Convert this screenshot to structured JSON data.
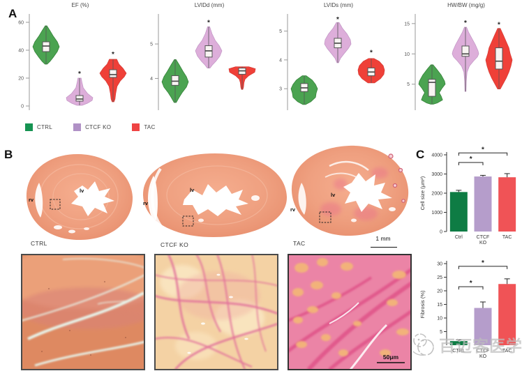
{
  "figure": {
    "panelA_label": "A",
    "panelB_label": "B",
    "panelC_label": "C"
  },
  "panelA": {
    "legend": [
      {
        "label": "CTRL",
        "color": "#169352"
      },
      {
        "label": "CTCF KO",
        "color": "#b091c6"
      },
      {
        "label": "TAC",
        "color": "#ef4444"
      }
    ]
  },
  "panelB": {
    "heart_labels": [
      "CTRL",
      "CTCF KO",
      "TAC"
    ],
    "region_labels": {
      "rv": "rv",
      "lv": "lv"
    },
    "scale_bar": "1 mm",
    "crop_scale_bar": "50μm"
  },
  "watermark": {
    "text": "百迈客医学"
  },
  "chart_data": [
    {
      "type": "violin",
      "title": "EF (%)",
      "ylim": [
        0,
        63
      ],
      "yticks": [
        0,
        20,
        40,
        60
      ],
      "groups": [
        {
          "name": "CTRL",
          "color": "#4ba351",
          "edge": "#2e7d32",
          "median": 43,
          "q1": 39,
          "q3": 46,
          "star": null,
          "profile": [
            [
              57.5,
              0.06
            ],
            [
              54,
              0.3
            ],
            [
              50,
              0.55
            ],
            [
              46,
              0.85
            ],
            [
              42.5,
              1.0
            ],
            [
              39,
              0.85
            ],
            [
              35,
              0.55
            ],
            [
              32,
              0.3
            ],
            [
              30,
              0.08
            ]
          ]
        },
        {
          "name": "CTCF KO",
          "color": "#ddaeda",
          "edge": "#c094c4",
          "median": 5,
          "q1": 3.5,
          "q3": 7.5,
          "star": 23,
          "profile": [
            [
              20,
              0.12
            ],
            [
              17,
              0.18
            ],
            [
              13,
              0.28
            ],
            [
              9,
              0.6
            ],
            [
              6,
              1.0
            ],
            [
              4,
              0.95
            ],
            [
              2,
              0.6
            ],
            [
              0.5,
              0.2
            ]
          ]
        },
        {
          "name": "TAC",
          "color": "#ef4038",
          "edge": "#d43a35",
          "median": 22.5,
          "q1": 20.5,
          "q3": 26,
          "star": 37,
          "profile": [
            [
              33.5,
              0.28
            ],
            [
              30,
              0.45
            ],
            [
              27,
              0.75
            ],
            [
              23.5,
              1.0
            ],
            [
              21,
              0.85
            ],
            [
              18,
              0.55
            ],
            [
              14,
              0.3
            ],
            [
              9,
              0.2
            ],
            [
              5,
              0.15
            ],
            [
              3,
              0.07
            ]
          ]
        }
      ]
    },
    {
      "type": "violin",
      "title": "LVIDd (mm)",
      "ylim": [
        3.2,
        5.75
      ],
      "yticks": [
        4,
        5
      ],
      "groups": [
        {
          "name": "CTRL",
          "color": "#4ba351",
          "edge": "#2e7d32",
          "median": 3.92,
          "q1": 3.8,
          "q3": 4.08,
          "star": null,
          "profile": [
            [
              4.55,
              0.06
            ],
            [
              4.4,
              0.3
            ],
            [
              4.2,
              0.6
            ],
            [
              4.05,
              0.85
            ],
            [
              3.9,
              1.0
            ],
            [
              3.75,
              0.85
            ],
            [
              3.6,
              0.55
            ],
            [
              3.45,
              0.3
            ],
            [
              3.3,
              0.08
            ]
          ]
        },
        {
          "name": "CTCF KO",
          "color": "#ddaeda",
          "edge": "#c094c4",
          "median": 4.8,
          "q1": 4.62,
          "q3": 4.95,
          "star": 5.62,
          "profile": [
            [
              5.5,
              0.08
            ],
            [
              5.3,
              0.25
            ],
            [
              5.1,
              0.5
            ],
            [
              4.95,
              0.8
            ],
            [
              4.8,
              1.0
            ],
            [
              4.65,
              0.85
            ],
            [
              4.5,
              0.55
            ],
            [
              4.4,
              0.3
            ],
            [
              4.3,
              0.1
            ]
          ]
        },
        {
          "name": "TAC",
          "color": "#ef4038",
          "edge": "#d43a35",
          "median": 4.22,
          "q1": 4.12,
          "q3": 4.3,
          "star": null,
          "profile": [
            [
              4.34,
              0.5
            ],
            [
              4.28,
              1.0
            ],
            [
              4.18,
              0.95
            ],
            [
              4.08,
              0.5
            ],
            [
              3.98,
              0.22
            ],
            [
              3.88,
              0.14
            ],
            [
              3.74,
              0.1
            ],
            [
              3.68,
              0.05
            ]
          ]
        }
      ]
    },
    {
      "type": "violin",
      "title": "LVIDs (mm)",
      "ylim": [
        2.4,
        5.45
      ],
      "yticks": [
        3,
        4,
        5
      ],
      "groups": [
        {
          "name": "CTRL",
          "color": "#4ba351",
          "edge": "#2e7d32",
          "median": 3.03,
          "q1": 2.9,
          "q3": 3.18,
          "star": null,
          "profile": [
            [
              3.45,
              0.15
            ],
            [
              3.3,
              0.6
            ],
            [
              3.15,
              0.85
            ],
            [
              3.0,
              1.0
            ],
            [
              2.85,
              0.9
            ],
            [
              2.7,
              0.85
            ],
            [
              2.55,
              0.5
            ],
            [
              2.45,
              0.1
            ]
          ]
        },
        {
          "name": "CTCF KO",
          "color": "#ddaeda",
          "edge": "#c094c4",
          "median": 4.58,
          "q1": 4.42,
          "q3": 4.75,
          "star": 5.4,
          "profile": [
            [
              5.3,
              0.1
            ],
            [
              5.1,
              0.35
            ],
            [
              4.9,
              0.7
            ],
            [
              4.7,
              0.95
            ],
            [
              4.55,
              1.0
            ],
            [
              4.4,
              0.8
            ],
            [
              4.2,
              0.45
            ],
            [
              4.05,
              0.2
            ],
            [
              3.9,
              0.06
            ]
          ]
        },
        {
          "name": "TAC",
          "color": "#ef4038",
          "edge": "#d43a35",
          "median": 3.58,
          "q1": 3.45,
          "q3": 3.72,
          "star": 4.25,
          "profile": [
            [
              4.05,
              0.2
            ],
            [
              3.95,
              0.6
            ],
            [
              3.8,
              0.9
            ],
            [
              3.65,
              1.0
            ],
            [
              3.5,
              0.95
            ],
            [
              3.35,
              0.7
            ],
            [
              3.2,
              0.25
            ]
          ]
        }
      ]
    },
    {
      "type": "violin",
      "title": "HW/BW (mg/g)",
      "ylim": [
        1.4,
        15.9
      ],
      "yticks": [
        5,
        10,
        15
      ],
      "groups": [
        {
          "name": "CTRL",
          "color": "#4ba351",
          "edge": "#2e7d32",
          "median": 5.3,
          "q1": 3.0,
          "q3": 5.8,
          "star": null,
          "profile": [
            [
              8.2,
              0.08
            ],
            [
              7.5,
              0.35
            ],
            [
              6.5,
              0.7
            ],
            [
              5.5,
              0.95
            ],
            [
              5.0,
              1.0
            ],
            [
              4.3,
              0.75
            ],
            [
              3.6,
              0.55
            ],
            [
              3.0,
              0.7
            ],
            [
              2.4,
              0.8
            ],
            [
              1.9,
              0.4
            ],
            [
              1.7,
              0.1
            ]
          ]
        },
        {
          "name": "CTCF KO",
          "color": "#ddaeda",
          "edge": "#c094c4",
          "median": 10.0,
          "q1": 9.6,
          "q3": 11.3,
          "star": 15.1,
          "profile": [
            [
              14.4,
              0.08
            ],
            [
              13.5,
              0.25
            ],
            [
              12.5,
              0.5
            ],
            [
              11.5,
              0.75
            ],
            [
              10.5,
              0.95
            ],
            [
              10.0,
              1.0
            ],
            [
              9.5,
              0.9
            ],
            [
              8.8,
              0.6
            ],
            [
              8.0,
              0.3
            ],
            [
              7.0,
              0.12
            ],
            [
              5.5,
              0.06
            ],
            [
              3.8,
              0.04
            ]
          ]
        },
        {
          "name": "TAC",
          "color": "#ef4038",
          "edge": "#d43a35",
          "median": 8.8,
          "q1": 7.5,
          "q3": 11.0,
          "star": 14.8,
          "profile": [
            [
              14.2,
              0.1
            ],
            [
              13.0,
              0.35
            ],
            [
              12.0,
              0.55
            ],
            [
              11.0,
              0.75
            ],
            [
              10.0,
              0.85
            ],
            [
              9.0,
              1.0
            ],
            [
              8.0,
              0.9
            ],
            [
              7.0,
              0.75
            ],
            [
              6.0,
              0.55
            ],
            [
              5.0,
              0.3
            ],
            [
              4.2,
              0.1
            ]
          ]
        }
      ]
    },
    {
      "type": "bar",
      "ylabel": "Cell size (μm²)",
      "ylim": [
        0,
        4000
      ],
      "yticks": [
        0,
        1000,
        2000,
        3000,
        4000
      ],
      "categories": [
        [
          "Ctrl"
        ],
        [
          "CTCF",
          "KO"
        ],
        [
          "TAC"
        ]
      ],
      "values": [
        2060,
        2870,
        2830
      ],
      "errors": [
        90,
        60,
        190
      ],
      "colors": [
        "#0e7c44",
        "#b59dcb",
        "#f05356"
      ],
      "sig": [
        {
          "pair": [
            0,
            1
          ],
          "label": "*",
          "y": 3600
        },
        {
          "pair": [
            0,
            2
          ],
          "label": "*",
          "y": 4100
        }
      ]
    },
    {
      "type": "bar",
      "ylabel": "Fibrosis (%)",
      "ylim": [
        0,
        30
      ],
      "yticks": [
        5,
        10,
        15,
        20,
        25,
        30
      ],
      "categories": [
        [
          "CTRL"
        ],
        [
          "CTCF",
          "KO"
        ],
        [
          "TAC"
        ]
      ],
      "values": [
        1.5,
        13.7,
        22.5
      ],
      "errors": [
        0.5,
        2.2,
        1.9
      ],
      "colors": [
        "#0e7c44",
        "#b59dcb",
        "#f05356"
      ],
      "sig": [
        {
          "pair": [
            0,
            1
          ],
          "label": "*",
          "y": 21.5
        },
        {
          "pair": [
            0,
            2
          ],
          "label": "*",
          "y": 29
        }
      ]
    }
  ]
}
